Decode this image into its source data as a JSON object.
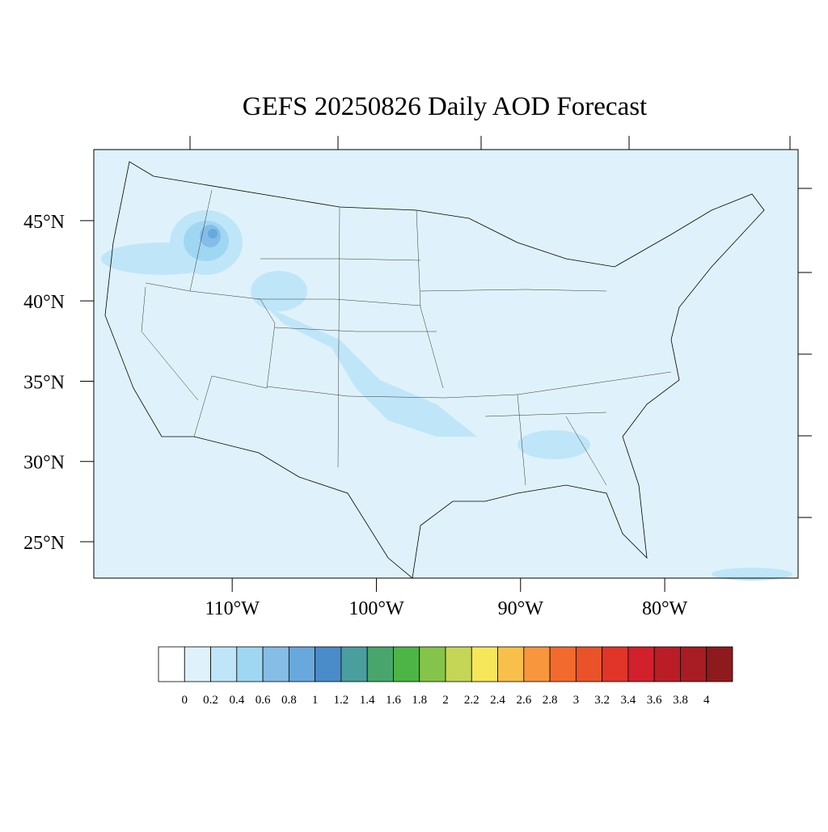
{
  "map": {
    "title": "GEFS 20250826 Daily AOD Forecast",
    "lonlim": [
      -119.6,
      -70.75
    ],
    "latlim": [
      22.73,
      49.43
    ],
    "lat_ticks": [
      {
        "value": 45,
        "label": "45°N"
      },
      {
        "value": 40,
        "label": "40°N"
      },
      {
        "value": 35,
        "label": "35°N"
      },
      {
        "value": 30,
        "label": "30°N"
      },
      {
        "value": 25,
        "label": "25°N"
      }
    ],
    "lon_ticks": [
      {
        "value": -110,
        "label": "110°W"
      },
      {
        "value": -100,
        "label": "100°W"
      },
      {
        "value": -90,
        "label": "90°W"
      },
      {
        "value": -80,
        "label": "80°W"
      }
    ]
  },
  "colorbar": {
    "lim": [
      -0.2,
      4.2
    ],
    "ticks": [
      0,
      0.2,
      0.4,
      0.6,
      0.8,
      1,
      1.2,
      1.4,
      1.6,
      1.8,
      2,
      2.2,
      2.4,
      2.6,
      2.8,
      3,
      3.2,
      3.4,
      3.6,
      3.8,
      4
    ],
    "colors": [
      "#ffffff",
      "#dff2fb",
      "#bfe6f8",
      "#9fd7f3",
      "#84bde6",
      "#68a8dc",
      "#4a8bc9",
      "#4a9e9e",
      "#48a66c",
      "#4db546",
      "#85c44a",
      "#c5d657",
      "#f6e75a",
      "#f8c04b",
      "#f7963c",
      "#f26a2d",
      "#ea5229",
      "#e03528",
      "#d3202d",
      "#bb1d26",
      "#a81c23",
      "#8f1a1d"
    ]
  }
}
